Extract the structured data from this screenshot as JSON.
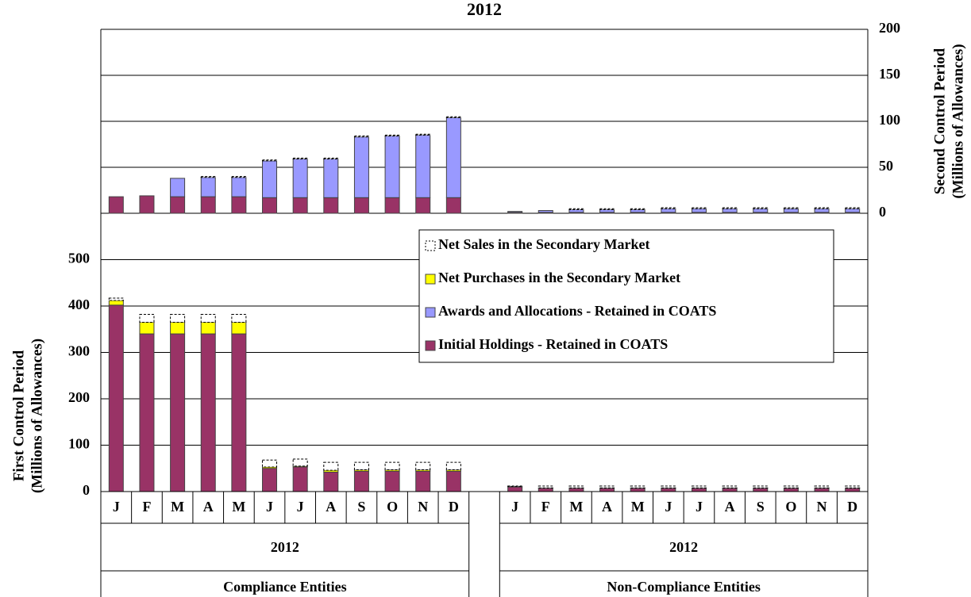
{
  "chart_data": [
    {
      "type": "bar",
      "stacked": true,
      "title": "2012",
      "ylabel": [
        "Second Control Period",
        "(Millions of Allowances)"
      ],
      "axis": "y2",
      "y2lim": [
        0,
        200
      ],
      "y2ticks": [
        0,
        50,
        100,
        150,
        200
      ],
      "grid": true,
      "series": [
        {
          "name": "Initial Holdings - Retained in COATS",
          "color": "#993366",
          "values": [
            18,
            19,
            18,
            18,
            18,
            17,
            17,
            17,
            17,
            17,
            17,
            17,
            1,
            1,
            1,
            1,
            1,
            1,
            1,
            1,
            1,
            1,
            1,
            1
          ]
        },
        {
          "name": "Awards and Allocations - Retained in COATS",
          "color": "#9999ff",
          "values": [
            0,
            0,
            20,
            21,
            21,
            40,
            42,
            42,
            66,
            67,
            68,
            87,
            1,
            2,
            3,
            3,
            3,
            4,
            4,
            4,
            4,
            4,
            4,
            4
          ]
        },
        {
          "name": "Net Purchases in the Secondary Market",
          "color": "#ffff00",
          "values": [
            0,
            0,
            0,
            0,
            0,
            0,
            0,
            0,
            0,
            0,
            0,
            0,
            0,
            0,
            0,
            0,
            0,
            0,
            0,
            0,
            0,
            0,
            0,
            0
          ]
        },
        {
          "name": "Net Sales in the Secondary Market",
          "color": "#ffffff",
          "values": [
            0,
            0,
            0,
            1,
            1,
            1,
            1,
            1,
            1,
            1,
            1,
            1,
            0,
            0,
            1,
            1,
            1,
            1,
            1,
            1,
            1,
            1,
            1,
            1
          ]
        }
      ]
    },
    {
      "type": "bar",
      "stacked": true,
      "ylabel": [
        "First Control Period",
        "(Millions of Allowances)"
      ],
      "ylim": [
        0,
        600
      ],
      "yticks": [
        0,
        100,
        200,
        300,
        400,
        500
      ],
      "grid": true,
      "legend": "upper right",
      "categories": [
        "J",
        "F",
        "M",
        "A",
        "M",
        "J",
        "J",
        "A",
        "S",
        "O",
        "N",
        "D",
        "J",
        "F",
        "M",
        "A",
        "M",
        "J",
        "J",
        "A",
        "S",
        "O",
        "N",
        "D"
      ],
      "groups": [
        {
          "year": "2012",
          "name": "Compliance Entities"
        },
        {
          "year": "2012",
          "name": "Non-Compliance Entities"
        }
      ],
      "series": [
        {
          "name": "Initial Holdings - Retained in COATS",
          "color": "#993366",
          "values": [
            402,
            340,
            340,
            340,
            340,
            50,
            53,
            42,
            44,
            44,
            44,
            44,
            10,
            7,
            7,
            7,
            7,
            7,
            7,
            7,
            7,
            7,
            7,
            7
          ]
        },
        {
          "name": "Awards and Allocations - Retained in COATS",
          "color": "#9999ff",
          "values": [
            0,
            0,
            0,
            0,
            0,
            0,
            0,
            0,
            0,
            0,
            0,
            0,
            0,
            0,
            0,
            0,
            0,
            0,
            0,
            0,
            0,
            0,
            0,
            0
          ]
        },
        {
          "name": "Net Purchases in the Secondary Market",
          "color": "#ffff00",
          "values": [
            10,
            25,
            25,
            25,
            25,
            3,
            2,
            4,
            3,
            3,
            3,
            3,
            1,
            1,
            1,
            1,
            1,
            1,
            1,
            1,
            1,
            1,
            1,
            1
          ]
        },
        {
          "name": "Net Sales in the Secondary Market",
          "color": "#ffffff",
          "values": [
            5,
            17,
            17,
            17,
            17,
            15,
            15,
            17,
            16,
            16,
            16,
            16,
            1,
            4,
            4,
            4,
            4,
            4,
            4,
            4,
            4,
            4,
            4,
            4
          ]
        }
      ]
    }
  ]
}
